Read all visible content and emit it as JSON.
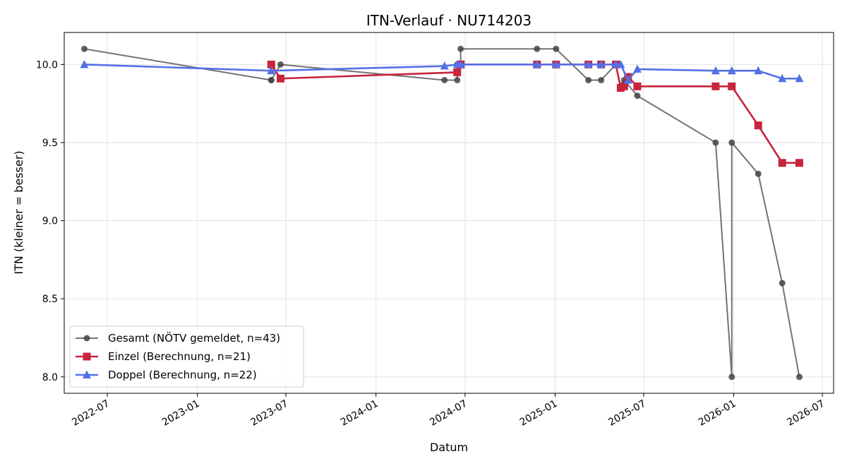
{
  "chart_data": {
    "type": "line",
    "title": "ITN-Verlauf · NU714203",
    "xlabel": "Datum",
    "ylabel": "ITN  (kleiner = besser)",
    "x_type": "date",
    "xlim": [
      "2022-04-04",
      "2026-07-24"
    ],
    "ylim": [
      7.895,
      10.205
    ],
    "yticks": [
      8.0,
      8.5,
      9.0,
      9.5,
      10.0
    ],
    "xticks": [
      "2022-07-01",
      "2023-01-01",
      "2023-07-01",
      "2024-01-01",
      "2024-07-01",
      "2025-01-01",
      "2025-07-01",
      "2026-01-01",
      "2026-07-01"
    ],
    "xtick_labels": [
      "2022-07",
      "2023-01",
      "2023-07",
      "2024-01",
      "2024-07",
      "2025-01",
      "2025-07",
      "2026-01",
      "2026-07"
    ],
    "grid": true,
    "legend_position": "lower-left",
    "series": [
      {
        "name": "Gesamt (NÖTV gemeldet, n=43)",
        "color": "#444444",
        "marker": "circle",
        "x": [
          "2022-05-15",
          "2023-06-01",
          "2023-06-01",
          "2023-06-20",
          "2024-05-20",
          "2024-06-15",
          "2024-06-15",
          "2024-06-22",
          "2024-06-22",
          "2024-06-22",
          "2024-11-25",
          "2025-01-03",
          "2025-03-10",
          "2025-04-05",
          "2025-05-05",
          "2025-05-15",
          "2025-05-22",
          "2025-06-18",
          "2025-11-25",
          "2025-12-28",
          "2025-12-28",
          "2026-02-20",
          "2026-04-10",
          "2026-05-15"
        ],
        "y": [
          10.1,
          9.9,
          9.9,
          10.0,
          9.9,
          9.9,
          10.0,
          10.0,
          10.0,
          10.1,
          10.1,
          10.1,
          9.9,
          9.9,
          10.0,
          9.86,
          9.9,
          9.8,
          9.5,
          8.0,
          9.5,
          9.3,
          8.6,
          8.0
        ]
      },
      {
        "name": "Einzel (Berechnung, n=21)",
        "color": "#c8243c",
        "marker": "square",
        "x": [
          "2023-06-01",
          "2023-06-20",
          "2024-06-15",
          "2024-06-22",
          "2024-06-22",
          "2024-11-25",
          "2025-01-03",
          "2025-03-10",
          "2025-04-05",
          "2025-05-05",
          "2025-05-15",
          "2025-05-22",
          "2025-05-30",
          "2025-06-18",
          "2025-11-25",
          "2025-12-28",
          "2026-02-20",
          "2026-04-10",
          "2026-05-15"
        ],
        "y": [
          10.0,
          9.91,
          9.95,
          10.0,
          10.0,
          10.0,
          10.0,
          10.0,
          10.0,
          10.0,
          9.85,
          9.86,
          9.92,
          9.86,
          9.86,
          9.86,
          9.61,
          9.37,
          9.37
        ]
      },
      {
        "name": "Doppel (Berechnung, n=22)",
        "color": "#5470e6",
        "marker": "triangle",
        "x": [
          "2022-05-15",
          "2023-06-01",
          "2024-05-20",
          "2024-06-15",
          "2024-06-22",
          "2024-11-25",
          "2025-01-03",
          "2025-03-10",
          "2025-04-05",
          "2025-05-05",
          "2025-05-15",
          "2025-05-30",
          "2025-06-18",
          "2025-11-25",
          "2025-12-28",
          "2026-02-20",
          "2026-04-10",
          "2026-05-15"
        ],
        "y": [
          10.0,
          9.96,
          9.99,
          10.0,
          10.0,
          10.0,
          10.0,
          10.0,
          10.0,
          10.0,
          10.0,
          9.9,
          9.97,
          9.96,
          9.96,
          9.96,
          9.91,
          9.91
        ]
      }
    ]
  }
}
